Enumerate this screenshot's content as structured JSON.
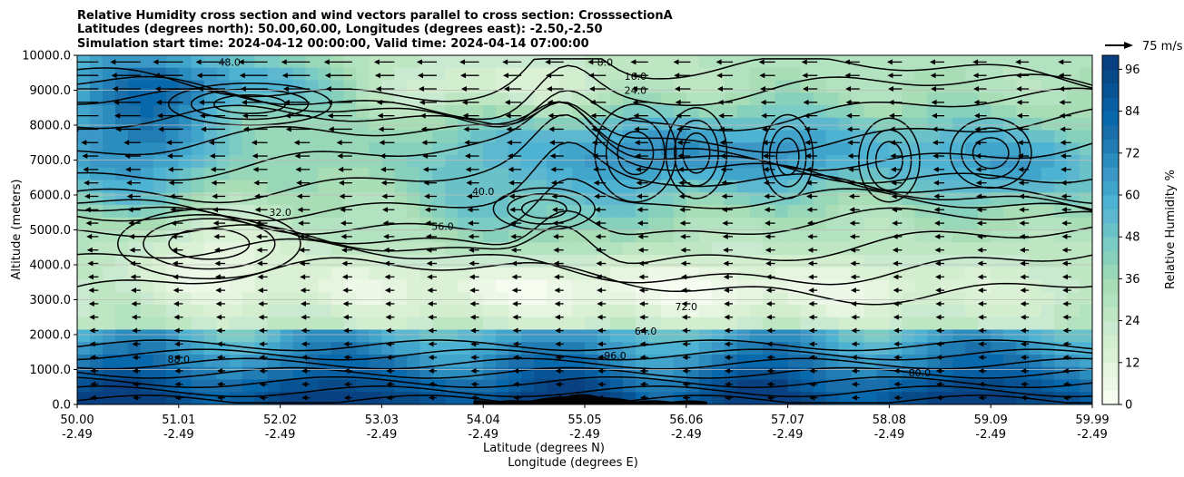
{
  "chart_data": {
    "type": "heatmap",
    "title_lines": [
      "Relative Humidity cross section and wind vectors parallel to cross section: CrosssectionA",
      "Latitudes (degrees north): 50.00,60.00, Longitudes (degrees east): -2.50,-2.50",
      "Simulation start time: 2024-04-12 00:00:00, Valid time: 2024-04-14 07:00:00"
    ],
    "ylabel": "Altitude (meters)",
    "xlabel_lines": [
      "Latitude (degrees N)",
      "Longitude (degrees E)"
    ],
    "xlim": [
      50.0,
      59.99
    ],
    "ylim": [
      0,
      10000
    ],
    "x_ticks": [
      {
        "lat": "50.00",
        "lon": "-2.49"
      },
      {
        "lat": "51.01",
        "lon": "-2.49"
      },
      {
        "lat": "52.02",
        "lon": "-2.49"
      },
      {
        "lat": "53.03",
        "lon": "-2.49"
      },
      {
        "lat": "54.04",
        "lon": "-2.49"
      },
      {
        "lat": "55.05",
        "lon": "-2.49"
      },
      {
        "lat": "56.06",
        "lon": "-2.49"
      },
      {
        "lat": "57.07",
        "lon": "-2.49"
      },
      {
        "lat": "58.08",
        "lon": "-2.49"
      },
      {
        "lat": "59.09",
        "lon": "-2.49"
      },
      {
        "lat": "59.99",
        "lon": "-2.49"
      }
    ],
    "y_ticks": [
      "0.0",
      "1000.0",
      "2000.0",
      "3000.0",
      "4000.0",
      "5000.0",
      "6000.0",
      "7000.0",
      "8000.0",
      "9000.0",
      "10000.0"
    ],
    "grid": "horizontal",
    "colorbar": {
      "label": "Relative Humidity %",
      "ticks": [
        "0",
        "12",
        "24",
        "36",
        "48",
        "60",
        "72",
        "84",
        "96"
      ],
      "levels_min": 0,
      "levels_max": 100,
      "level_step": 4,
      "colors": [
        "#f7fcf0",
        "#eef8e8",
        "#e5f5e0",
        "#dbf1d5",
        "#d3eece",
        "#c9ead0",
        "#bfe6c2",
        "#b2e2c0",
        "#a8ddb5",
        "#98d7b8",
        "#87d0bc",
        "#7bccc4",
        "#6ac2c8",
        "#5cb7cf",
        "#4eb3d3",
        "#41a5cb",
        "#3b97c5",
        "#2b8cbe",
        "#217cb4",
        "#1a6eaa",
        "#0868ac",
        "#085ea0",
        "#085394",
        "#084a88",
        "#084081"
      ]
    },
    "contour_labels": [
      "8.0",
      "16.0",
      "24.0",
      "32.0",
      "40.0",
      "48.0",
      "56.0",
      "64.0",
      "72.0",
      "80.0",
      "88.0",
      "96.0"
    ],
    "quiver_key": {
      "label": "75 m/s",
      "value": 75,
      "direction": "right"
    }
  }
}
